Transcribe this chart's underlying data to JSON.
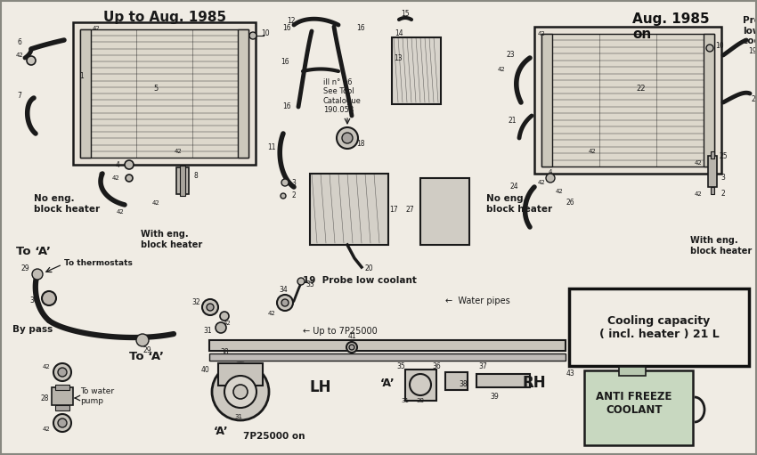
{
  "bg": "#f0ece4",
  "fg": "#1a1a1a",
  "fig_w": 8.5,
  "fig_h": 5.11,
  "dpi": 100,
  "titles": {
    "top_left": "Up to Aug. 1985",
    "top_right": "Aug. 1985\non",
    "probe_top_right": "Probe\nlow\ncoolant"
  },
  "labels": {
    "no_eng_left": "No eng.\nblock heater",
    "with_eng_left": "With eng.\nblock heater",
    "to_a_top": "To ‘A’",
    "to_thermostats": "To thermostats",
    "by_pass": "By pass",
    "to_a_bot": "To ‘A’",
    "to_water_pump": "To water\npump",
    "water_pipes": "Water pipes",
    "up_to_7p": "← Up to 7P25000",
    "7p_on": "7P25000 on",
    "a_lh": "‘A’",
    "lh": "LH",
    "a_rh": "‘A’",
    "rh": "RH",
    "no_eng_right": "No eng.\nblock heater",
    "with_eng_right": "With eng.\nblock heater",
    "ill_note": "ill n° 16\nSee Tool\nCatalogue\n190.058",
    "probe_mid": "Probe low coolant",
    "cooling_cap": "Cooling capacity\n( incl. heater ) 21 L",
    "anti_freeze": "ANTI FREEZE\nCOOLANT"
  }
}
